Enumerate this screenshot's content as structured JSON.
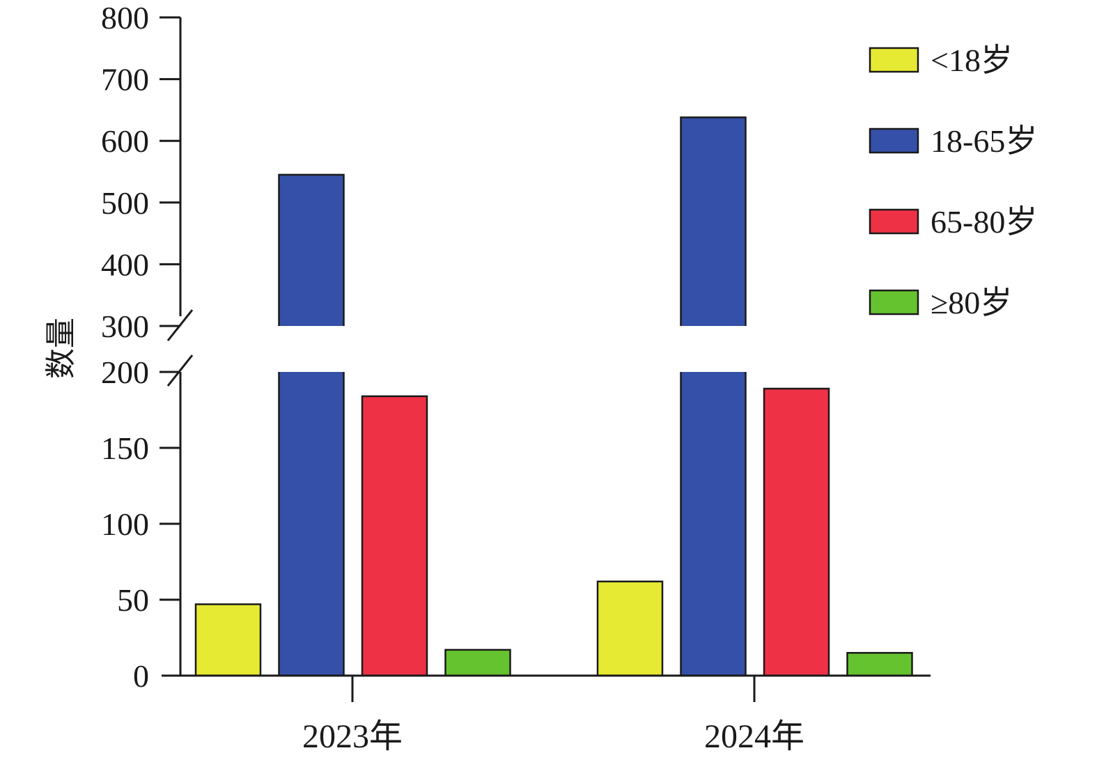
{
  "chart_data": {
    "type": "bar",
    "categories": [
      "2023年",
      "2024年"
    ],
    "series": [
      {
        "name": "<18岁",
        "color": "#e6ea33",
        "values": [
          47,
          62
        ]
      },
      {
        "name": "18-65岁",
        "color": "#3450a8",
        "values": [
          545,
          638
        ]
      },
      {
        "name": "65-80岁",
        "color": "#ee3145",
        "values": [
          184,
          189
        ]
      },
      {
        "name": "≥80岁",
        "color": "#66c330",
        "values": [
          17,
          15
        ]
      }
    ],
    "title": "",
    "xlabel": "",
    "ylabel": "数量",
    "y_axis_break": {
      "lower_range": [
        0,
        200
      ],
      "upper_range": [
        300,
        800
      ]
    },
    "lower_ticks": [
      0,
      50,
      100,
      150,
      200
    ],
    "upper_ticks": [
      300,
      400,
      500,
      600,
      700,
      800
    ],
    "grid": false,
    "legend_position": "top-right"
  }
}
